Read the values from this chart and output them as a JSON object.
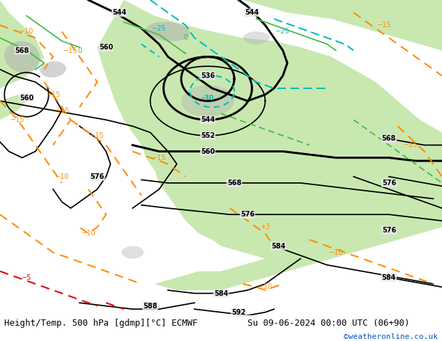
{
  "title_left": "Height/Temp. 500 hPa [gdmp][°C] ECMWF",
  "title_right": "Su 09-06-2024 00:00 UTC (06+90)",
  "copyright": "©weatheronline.co.uk",
  "fig_width": 6.34,
  "fig_height": 4.9,
  "dpi": 100,
  "land_color": "#c8e8b0",
  "ocean_color": "#e8e8e8",
  "gray_terrain_color": "#b0b0b0",
  "bottom_bar_color": "#ffffff",
  "bottom_text_color": "#000000",
  "copyright_color": "#0055cc",
  "font_size_title": 9,
  "font_size_copyright": 8,
  "z500_color": "#000000",
  "temp_orange_color": "#ff8c00",
  "temp_red_color": "#dd0000",
  "z850_cyan_color": "#00bbbb",
  "z850_green_color": "#44bb44",
  "label_fontsize": 7
}
